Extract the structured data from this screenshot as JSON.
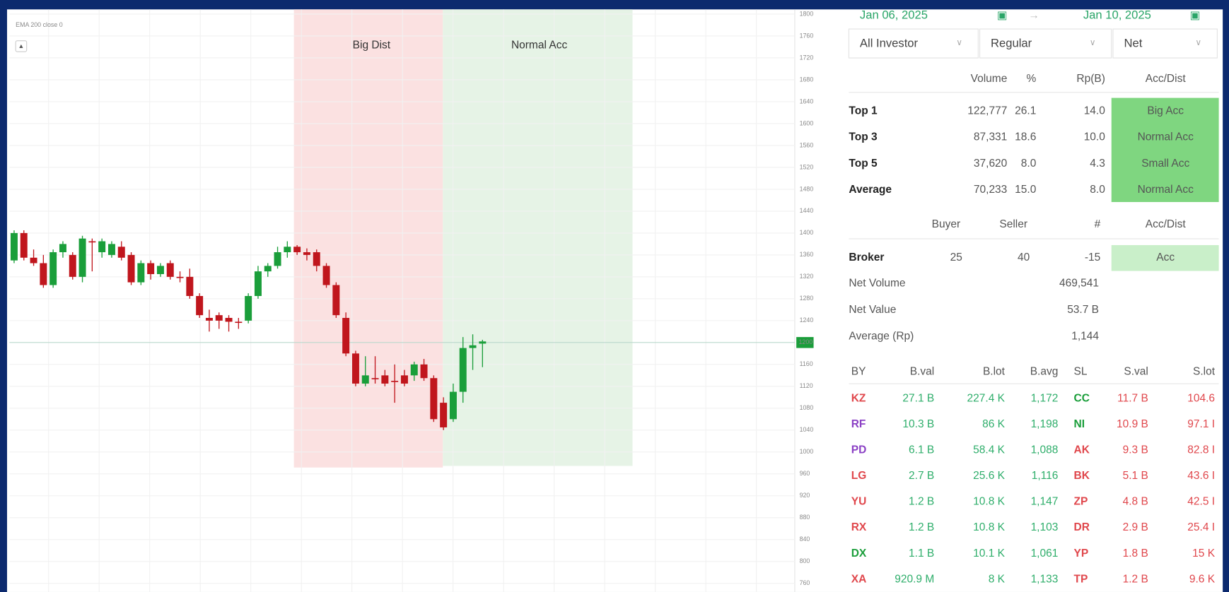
{
  "chart": {
    "indicator": "EMA 200 close 0",
    "zone_labels": [
      "Big Dist",
      "Normal Acc"
    ],
    "ylim": [
      760,
      1800
    ],
    "yticks": [
      1800,
      1760,
      1720,
      1680,
      1640,
      1600,
      1560,
      1520,
      1480,
      1440,
      1400,
      1360,
      1320,
      1280,
      1240,
      1160,
      1120,
      1080,
      1040,
      1000,
      960,
      920,
      880,
      840,
      800,
      760
    ],
    "current_price": 1200,
    "up_color": "#1a9e3a",
    "down_color": "#c0161d",
    "candles": [
      {
        "open": 1350,
        "high": 1405,
        "low": 1345,
        "close": 1400
      },
      {
        "open": 1400,
        "high": 1405,
        "low": 1350,
        "close": 1355
      },
      {
        "open": 1355,
        "high": 1370,
        "low": 1340,
        "close": 1345
      },
      {
        "open": 1345,
        "high": 1360,
        "low": 1300,
        "close": 1305
      },
      {
        "open": 1305,
        "high": 1370,
        "low": 1300,
        "close": 1365
      },
      {
        "open": 1365,
        "high": 1385,
        "low": 1355,
        "close": 1380
      },
      {
        "open": 1360,
        "high": 1365,
        "low": 1315,
        "close": 1320
      },
      {
        "open": 1320,
        "high": 1395,
        "low": 1310,
        "close": 1390
      },
      {
        "open": 1385,
        "high": 1390,
        "low": 1330,
        "close": 1384
      },
      {
        "open": 1365,
        "high": 1390,
        "low": 1355,
        "close": 1385
      },
      {
        "open": 1360,
        "high": 1385,
        "low": 1355,
        "close": 1380
      },
      {
        "open": 1375,
        "high": 1385,
        "low": 1350,
        "close": 1355
      },
      {
        "open": 1360,
        "high": 1365,
        "low": 1305,
        "close": 1310
      },
      {
        "open": 1310,
        "high": 1350,
        "low": 1305,
        "close": 1345
      },
      {
        "open": 1345,
        "high": 1350,
        "low": 1315,
        "close": 1325
      },
      {
        "open": 1325,
        "high": 1345,
        "low": 1320,
        "close": 1340
      },
      {
        "open": 1345,
        "high": 1350,
        "low": 1315,
        "close": 1320
      },
      {
        "open": 1320,
        "high": 1330,
        "low": 1310,
        "close": 1318
      },
      {
        "open": 1320,
        "high": 1335,
        "low": 1280,
        "close": 1285
      },
      {
        "open": 1285,
        "high": 1290,
        "low": 1245,
        "close": 1250
      },
      {
        "open": 1245,
        "high": 1260,
        "low": 1220,
        "close": 1240
      },
      {
        "open": 1250,
        "high": 1255,
        "low": 1225,
        "close": 1240
      },
      {
        "open": 1245,
        "high": 1250,
        "low": 1220,
        "close": 1238
      },
      {
        "open": 1238,
        "high": 1245,
        "low": 1225,
        "close": 1236
      },
      {
        "open": 1240,
        "high": 1290,
        "low": 1235,
        "close": 1285
      },
      {
        "open": 1285,
        "high": 1340,
        "low": 1280,
        "close": 1330
      },
      {
        "open": 1330,
        "high": 1345,
        "low": 1320,
        "close": 1340
      },
      {
        "open": 1340,
        "high": 1375,
        "low": 1335,
        "close": 1365
      },
      {
        "open": 1365,
        "high": 1385,
        "low": 1355,
        "close": 1375
      },
      {
        "open": 1375,
        "high": 1378,
        "low": 1360,
        "close": 1365
      },
      {
        "open": 1365,
        "high": 1372,
        "low": 1350,
        "close": 1360
      },
      {
        "open": 1365,
        "high": 1370,
        "low": 1330,
        "close": 1340
      },
      {
        "open": 1340,
        "high": 1345,
        "low": 1300,
        "close": 1305
      },
      {
        "open": 1305,
        "high": 1310,
        "low": 1245,
        "close": 1250
      },
      {
        "open": 1245,
        "high": 1255,
        "low": 1175,
        "close": 1180
      },
      {
        "open": 1180,
        "high": 1185,
        "low": 1120,
        "close": 1125
      },
      {
        "open": 1125,
        "high": 1175,
        "low": 1120,
        "close": 1140
      },
      {
        "open": 1135,
        "high": 1175,
        "low": 1125,
        "close": 1133
      },
      {
        "open": 1140,
        "high": 1150,
        "low": 1120,
        "close": 1125
      },
      {
        "open": 1130,
        "high": 1160,
        "low": 1090,
        "close": 1128
      },
      {
        "open": 1140,
        "high": 1150,
        "low": 1120,
        "close": 1125
      },
      {
        "open": 1140,
        "high": 1165,
        "low": 1130,
        "close": 1160
      },
      {
        "open": 1160,
        "high": 1170,
        "low": 1130,
        "close": 1135
      },
      {
        "open": 1135,
        "high": 1140,
        "low": 1055,
        "close": 1060
      },
      {
        "open": 1090,
        "high": 1100,
        "low": 1040,
        "close": 1045
      },
      {
        "open": 1060,
        "high": 1125,
        "low": 1055,
        "close": 1110
      },
      {
        "open": 1110,
        "high": 1210,
        "low": 1090,
        "close": 1190
      },
      {
        "open": 1190,
        "high": 1215,
        "low": 1150,
        "close": 1195
      },
      {
        "open": 1198,
        "high": 1205,
        "low": 1155,
        "close": 1202
      }
    ]
  },
  "panel": {
    "date_from": "Jan 06, 2025",
    "arrow": "→",
    "date_to": "Jan 10, 2025",
    "filters": [
      "All Investor",
      "Regular",
      "Net"
    ],
    "top_headers": [
      "Volume",
      "%",
      "Rp(B)",
      "Acc/Dist"
    ],
    "top_rows": [
      [
        "Top 1",
        "122,777",
        "26.1",
        "14.0",
        "Big Acc"
      ],
      [
        "Top 3",
        "87,331",
        "18.6",
        "10.0",
        "Normal Acc"
      ],
      [
        "Top 5",
        "37,620",
        "8.0",
        "4.3",
        "Small Acc"
      ],
      [
        "Average",
        "70,233",
        "15.0",
        "8.0",
        "Normal Acc"
      ]
    ],
    "broker_headers": [
      "Buyer",
      "Seller",
      "#",
      "Acc/Dist"
    ],
    "broker_row": [
      "Broker",
      "25",
      "40",
      "-15",
      "Acc"
    ],
    "summary": [
      [
        "Net Volume",
        "469,541"
      ],
      [
        "Net Value",
        "53.7 B"
      ],
      [
        "Average (Rp)",
        "1,144"
      ]
    ],
    "list_headers": [
      "BY",
      "B.val",
      "B.lot",
      "B.avg",
      "SL",
      "S.val",
      "S.lot"
    ],
    "list_rows": [
      {
        "buyer": "KZ",
        "buyer_color": "#e0474c",
        "bval": "27.1 B",
        "blot": "227.4 K",
        "bavg": "1,172",
        "seller": "CC",
        "seller_color": "#1a9e3a",
        "sval": "11.7 B",
        "slot": "104.6"
      },
      {
        "buyer": "RF",
        "buyer_color": "#8a3fc4",
        "bval": "10.3 B",
        "blot": "86 K",
        "bavg": "1,198",
        "seller": "NI",
        "seller_color": "#1a9e3a",
        "sval": "10.9 B",
        "slot": "97.1 I"
      },
      {
        "buyer": "PD",
        "buyer_color": "#8a3fc4",
        "bval": "6.1 B",
        "blot": "58.4 K",
        "bavg": "1,088",
        "seller": "AK",
        "seller_color": "#e0474c",
        "sval": "9.3 B",
        "slot": "82.8 I"
      },
      {
        "buyer": "LG",
        "buyer_color": "#e0474c",
        "bval": "2.7 B",
        "blot": "25.6 K",
        "bavg": "1,116",
        "seller": "BK",
        "seller_color": "#e0474c",
        "sval": "5.1 B",
        "slot": "43.6 I"
      },
      {
        "buyer": "YU",
        "buyer_color": "#e0474c",
        "bval": "1.2 B",
        "blot": "10.8 K",
        "bavg": "1,147",
        "seller": "ZP",
        "seller_color": "#e0474c",
        "sval": "4.8 B",
        "slot": "42.5 I"
      },
      {
        "buyer": "RX",
        "buyer_color": "#e0474c",
        "bval": "1.2 B",
        "blot": "10.8 K",
        "bavg": "1,103",
        "seller": "DR",
        "seller_color": "#e0474c",
        "sval": "2.9 B",
        "slot": "25.4 I"
      },
      {
        "buyer": "DX",
        "buyer_color": "#1a9e3a",
        "bval": "1.1 B",
        "blot": "10.1 K",
        "bavg": "1,061",
        "seller": "YP",
        "seller_color": "#e0474c",
        "sval": "1.8 B",
        "slot": "15 K"
      },
      {
        "buyer": "XA",
        "buyer_color": "#e0474c",
        "bval": "920.9 M",
        "blot": "8 K",
        "bavg": "1,133",
        "seller": "TP",
        "seller_color": "#e0474c",
        "sval": "1.2 B",
        "slot": "9.6 K"
      }
    ]
  }
}
